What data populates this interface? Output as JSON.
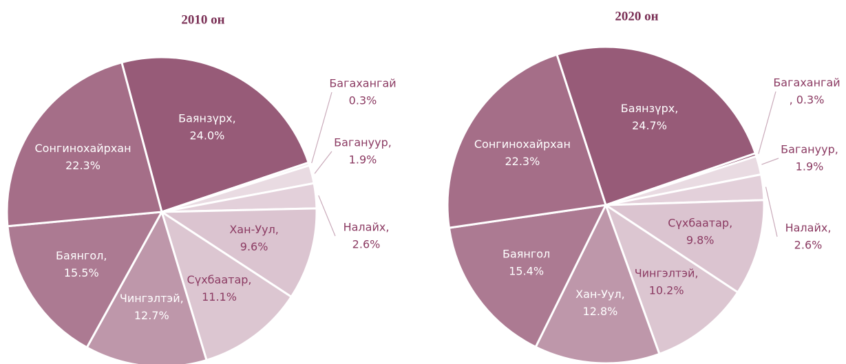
{
  "chart_data": [
    {
      "type": "pie",
      "title": "2010 он",
      "categories": [
        "Баянзүрх,",
        "Багахангай",
        "Багануур,",
        "Налайх,",
        "Хан-Уул,",
        "Сүхбаатар,",
        "Чингэлтэй,",
        "Баянгол,",
        "Сонгинохайрхан"
      ],
      "values": [
        24.0,
        0.3,
        1.9,
        2.6,
        9.6,
        11.1,
        12.7,
        15.5,
        22.3
      ],
      "value_labels": [
        "24.0%",
        "0.3%",
        "1.9%",
        "2.6%",
        "9.6%",
        "11.1%",
        "12.7%",
        "15.5%",
        "22.3%"
      ],
      "colors": [
        "#975b78",
        "#efe4ea",
        "#e9dbe2",
        "#e3d0da",
        "#dbc4d0",
        "#dcc6d1",
        "#be97aa",
        "#ac7a92",
        "#a56e88"
      ]
    },
    {
      "type": "pie",
      "title": "2020 он",
      "categories": [
        "Баянзүрх,",
        "Багахангай",
        "Багануур,",
        "Налайх,",
        "Сүхбаатар,",
        "Чингэлтэй,",
        "Хан-Уул,",
        "Баянгол",
        "Сонгинохайрхан"
      ],
      "values": [
        24.7,
        0.3,
        1.9,
        2.6,
        9.8,
        10.2,
        12.8,
        15.4,
        22.3
      ],
      "value_labels": [
        "24.7%",
        ", 0.3%",
        "1.9%",
        "2.6%",
        "9.8%",
        "10.2%",
        "12.8%",
        "15.4%",
        "22.3%"
      ],
      "colors": [
        "#975b78",
        "#8f4f6e",
        "#e9dbe2",
        "#e3d0da",
        "#dbc4d0",
        "#dcc6d1",
        "#be97aa",
        "#ac7a92",
        "#a56e88"
      ]
    }
  ]
}
